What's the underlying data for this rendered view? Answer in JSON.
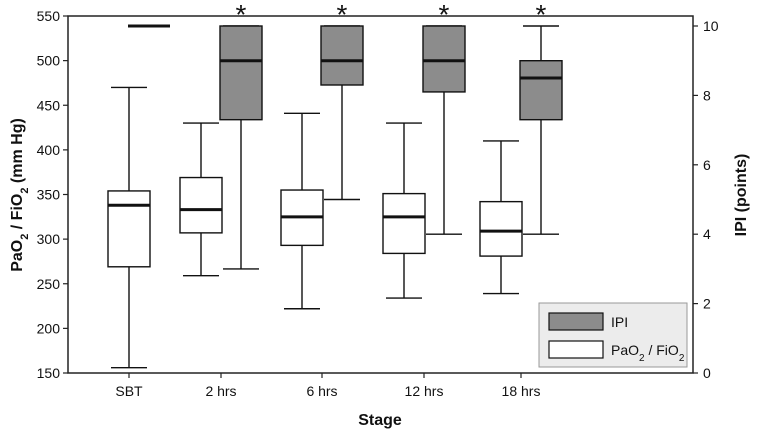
{
  "chart_data": {
    "type": "boxplot",
    "categories": [
      "SBT",
      "2 hrs",
      "6 hrs",
      "12 hrs",
      "18 hrs"
    ],
    "xlabel": "Stage",
    "ylabel_left_parts": [
      "PaO",
      "2",
      " / FiO",
      "2",
      " (mm Hg)"
    ],
    "ylabel_right": "IPI (points)",
    "ylim_left": [
      150,
      550
    ],
    "yticks_left": [
      150,
      200,
      250,
      300,
      350,
      400,
      450,
      500,
      550
    ],
    "ylim_right": [
      0,
      10
    ],
    "yticks_right": [
      0,
      2,
      4,
      6,
      8,
      10
    ],
    "series": [
      {
        "key": "pao2",
        "axis": "left",
        "color": "#ffffff",
        "boxes": [
          {
            "category": "SBT",
            "whisker_low": 156,
            "q1": 269,
            "median": 338,
            "q3": 354,
            "whisker_high": 470
          },
          {
            "category": "2 hrs",
            "whisker_low": 259,
            "q1": 307,
            "median": 333,
            "q3": 369,
            "whisker_high": 430
          },
          {
            "category": "6 hrs",
            "whisker_low": 222,
            "q1": 293,
            "median": 325,
            "q3": 355,
            "whisker_high": 441
          },
          {
            "category": "12 hrs",
            "whisker_low": 234,
            "q1": 284,
            "median": 325,
            "q3": 351,
            "whisker_high": 430
          },
          {
            "category": "18 hrs",
            "whisker_low": 239,
            "q1": 281,
            "median": 309,
            "q3": 342,
            "whisker_high": 410
          }
        ]
      },
      {
        "key": "ipi",
        "axis": "right",
        "color": "#8c8c8c",
        "boxes": [
          {
            "category": "SBT",
            "whisker_low": 10,
            "q1": 10,
            "median": 10,
            "q3": 10,
            "whisker_high": 10
          },
          {
            "category": "2 hrs",
            "whisker_low": 3.0,
            "q1": 7.3,
            "median": 9.0,
            "q3": 10,
            "whisker_high": 10
          },
          {
            "category": "6 hrs",
            "whisker_low": 5.0,
            "q1": 8.3,
            "median": 9.0,
            "q3": 10,
            "whisker_high": 10
          },
          {
            "category": "12 hrs",
            "whisker_low": 4.0,
            "q1": 8.1,
            "median": 9.0,
            "q3": 10,
            "whisker_high": 10
          },
          {
            "category": "18 hrs",
            "whisker_low": 4.0,
            "q1": 7.3,
            "median": 8.5,
            "q3": 9.0,
            "whisker_high": 10
          }
        ]
      }
    ],
    "significance_marker": "*",
    "significant_categories": [
      "2 hrs",
      "6 hrs",
      "12 hrs",
      "18 hrs"
    ],
    "legend": {
      "placement": "bottom-right",
      "entries": [
        {
          "series": "ipi",
          "parts": [
            "IPI"
          ]
        },
        {
          "series": "pao2",
          "parts": [
            "PaO",
            "2",
            " / FiO",
            "2"
          ]
        }
      ]
    },
    "grid": false
  }
}
